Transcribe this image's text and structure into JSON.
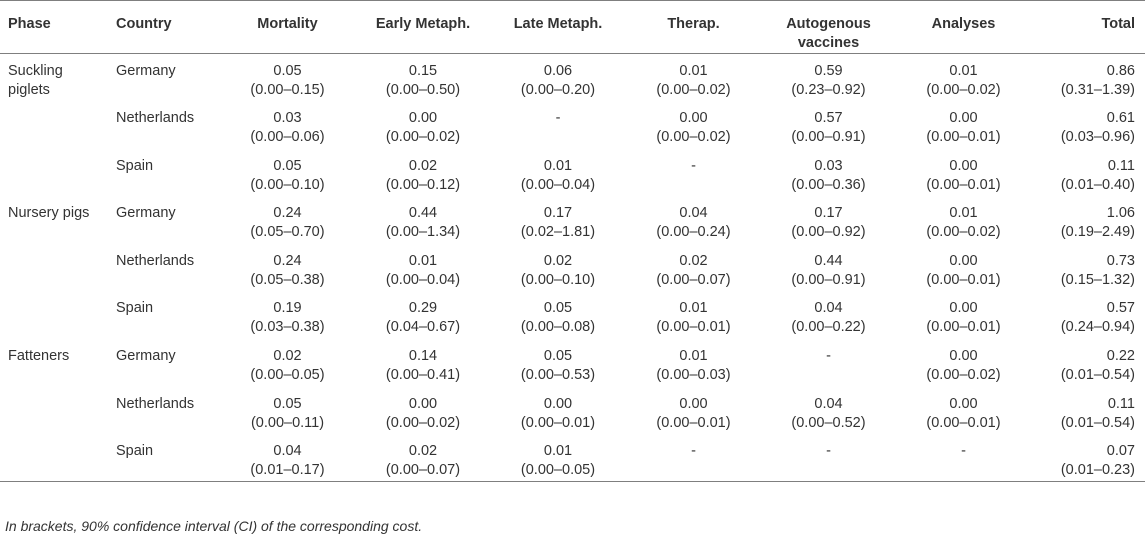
{
  "columns": [
    "Phase",
    "Country",
    "Mortality",
    "Early Metaph.",
    "Late Metaph.",
    "Therap.",
    "Autogenous vaccines",
    "Analyses",
    "Total"
  ],
  "rows": [
    {
      "phase": "Suckling piglets",
      "country": "Germany",
      "cells": [
        [
          "0.05",
          "(0.00–0.15)"
        ],
        [
          "0.15",
          "(0.00–0.50)"
        ],
        [
          "0.06",
          "(0.00–0.20)"
        ],
        [
          "0.01",
          "(0.00–0.02)"
        ],
        [
          "0.59",
          "(0.23–0.92)"
        ],
        [
          "0.01",
          "(0.00–0.02)"
        ],
        [
          "0.86",
          "(0.31–1.39)"
        ]
      ]
    },
    {
      "phase": "",
      "country": "Netherlands",
      "cells": [
        [
          "0.03",
          "(0.00–0.06)"
        ],
        [
          "0.00",
          "(0.00–0.02)"
        ],
        [
          "-",
          ""
        ],
        [
          "0.00",
          "(0.00–0.02)"
        ],
        [
          "0.57",
          "(0.00–0.91)"
        ],
        [
          "0.00",
          "(0.00–0.01)"
        ],
        [
          "0.61",
          "(0.03–0.96)"
        ]
      ]
    },
    {
      "phase": "",
      "country": "Spain",
      "cells": [
        [
          "0.05",
          "(0.00–0.10)"
        ],
        [
          "0.02",
          "(0.00–0.12)"
        ],
        [
          "0.01",
          "(0.00–0.04)"
        ],
        [
          "-",
          ""
        ],
        [
          "0.03",
          "(0.00–0.36)"
        ],
        [
          "0.00",
          "(0.00–0.01)"
        ],
        [
          "0.11",
          "(0.01–0.40)"
        ]
      ]
    },
    {
      "phase": "Nursery pigs",
      "country": "Germany",
      "cells": [
        [
          "0.24",
          "(0.05–0.70)"
        ],
        [
          "0.44",
          "(0.00–1.34)"
        ],
        [
          "0.17",
          "(0.02–1.81)"
        ],
        [
          "0.04",
          "(0.00–0.24)"
        ],
        [
          "0.17",
          "(0.00–0.92)"
        ],
        [
          "0.01",
          "(0.00–0.02)"
        ],
        [
          "1.06",
          "(0.19–2.49)"
        ]
      ]
    },
    {
      "phase": "",
      "country": "Netherlands",
      "cells": [
        [
          "0.24",
          "(0.05–0.38)"
        ],
        [
          "0.01",
          "(0.00–0.04)"
        ],
        [
          "0.02",
          "(0.00–0.10)"
        ],
        [
          "0.02",
          "(0.00–0.07)"
        ],
        [
          "0.44",
          "(0.00–0.91)"
        ],
        [
          "0.00",
          "(0.00–0.01)"
        ],
        [
          "0.73",
          "(0.15–1.32)"
        ]
      ]
    },
    {
      "phase": "",
      "country": "Spain",
      "cells": [
        [
          "0.19",
          "(0.03–0.38)"
        ],
        [
          "0.29",
          "(0.04–0.67)"
        ],
        [
          "0.05",
          "(0.00–0.08)"
        ],
        [
          "0.01",
          "(0.00–0.01)"
        ],
        [
          "0.04",
          "(0.00–0.22)"
        ],
        [
          "0.00",
          "(0.00–0.01)"
        ],
        [
          "0.57",
          "(0.24–0.94)"
        ]
      ]
    },
    {
      "phase": "Fatteners",
      "country": "Germany",
      "cells": [
        [
          "0.02",
          "(0.00–0.05)"
        ],
        [
          "0.14",
          "(0.00–0.41)"
        ],
        [
          "0.05",
          "(0.00–0.53)"
        ],
        [
          "0.01",
          "(0.00–0.03)"
        ],
        [
          "-",
          ""
        ],
        [
          "0.00",
          "(0.00–0.02)"
        ],
        [
          "0.22",
          "(0.01–0.54)"
        ]
      ]
    },
    {
      "phase": "",
      "country": "Netherlands",
      "cells": [
        [
          "0.05",
          "(0.00–0.11)"
        ],
        [
          "0.00",
          "(0.00–0.02)"
        ],
        [
          "0.00",
          "(0.00–0.01)"
        ],
        [
          "0.00",
          "(0.00–0.01)"
        ],
        [
          "0.04",
          "(0.00–0.52)"
        ],
        [
          "0.00",
          "(0.00–0.01)"
        ],
        [
          "0.11",
          "(0.01–0.54)"
        ]
      ]
    },
    {
      "phase": "",
      "country": "Spain",
      "cells": [
        [
          "0.04",
          "(0.01–0.17)"
        ],
        [
          "0.02",
          "(0.00–0.07)"
        ],
        [
          "0.01",
          "(0.00–0.05)"
        ],
        [
          "-",
          ""
        ],
        [
          "-",
          ""
        ],
        [
          "-",
          ""
        ],
        [
          "0.07",
          "(0.01–0.23)"
        ]
      ]
    }
  ],
  "footnote": "In brackets, 90% confidence interval (CI) of the corresponding cost."
}
